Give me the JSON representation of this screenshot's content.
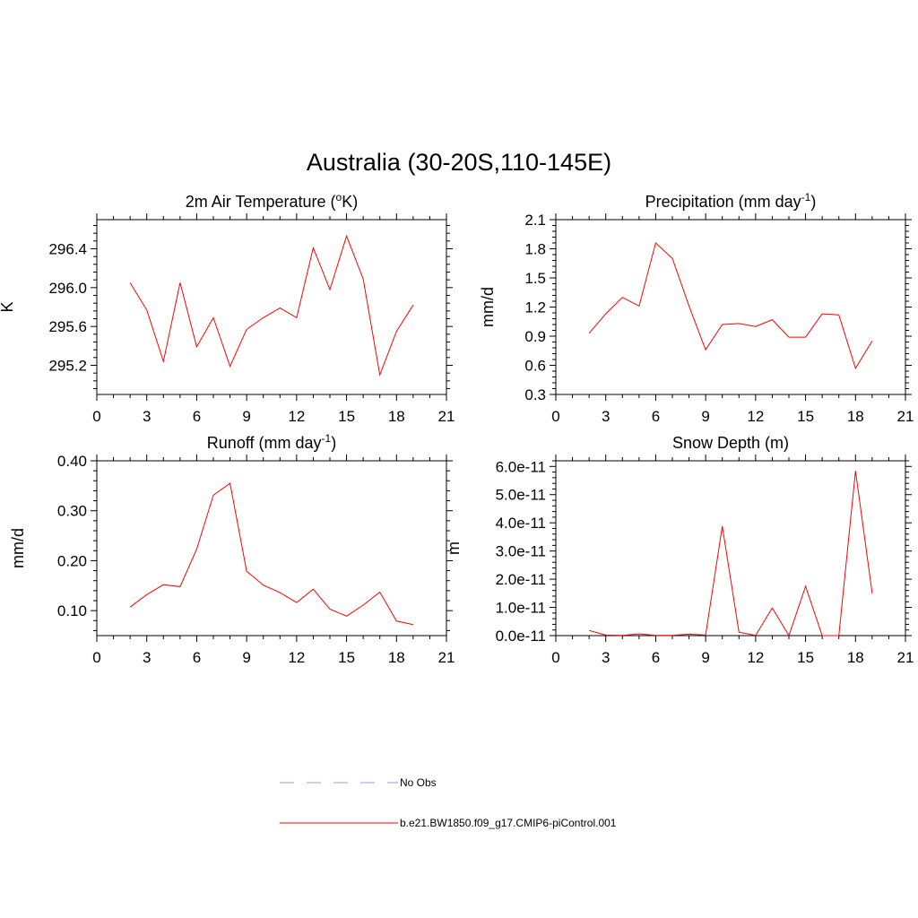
{
  "title": "Australia (30-20S,110-145E)",
  "colors": {
    "model": "#ff0000",
    "obs": "#9999ff"
  },
  "legend": [
    {
      "name": "No Obs",
      "style": "dashed",
      "color": "#9999ff"
    },
    {
      "name": "b.e21.BW1850.f09_g17.CMIP6-piControl.001",
      "style": "solid",
      "color": "#ff0000"
    }
  ],
  "chart_data": [
    {
      "type": "line",
      "title_parts": [
        "2m Air Temperature (",
        "o",
        "K)"
      ],
      "ylabel": "K",
      "xlim": [
        0,
        21
      ],
      "ylim": [
        294.9,
        296.7
      ],
      "xticks": [
        0,
        3,
        6,
        9,
        12,
        15,
        18,
        21
      ],
      "xtick_labels": [
        "0",
        "3",
        "6",
        "9",
        "12",
        "15",
        "18",
        "21"
      ],
      "yticks": [
        295.2,
        295.6,
        296.0,
        296.4
      ],
      "ytick_labels": [
        "295.2",
        "295.6",
        "296.0",
        "296.4"
      ],
      "series": [
        {
          "name": "b.e21.BW1850.f09_g17.CMIP6-piControl.001",
          "x": [
            2,
            3,
            4,
            5,
            6,
            7,
            8,
            9,
            10,
            11,
            12,
            13,
            14,
            15,
            16,
            17,
            18,
            19
          ],
          "y": [
            296.05,
            295.77,
            295.24,
            296.05,
            295.39,
            295.69,
            295.19,
            295.57,
            295.69,
            295.79,
            295.69,
            296.41,
            295.98,
            296.53,
            296.09,
            295.1,
            295.55,
            295.82
          ]
        }
      ]
    },
    {
      "type": "line",
      "title_parts": [
        "Precipitation (mm day",
        "-1",
        ")"
      ],
      "ylabel": "mm/d",
      "xlim": [
        0,
        21
      ],
      "ylim": [
        0.3,
        2.1
      ],
      "xticks": [
        0,
        3,
        6,
        9,
        12,
        15,
        18,
        21
      ],
      "xtick_labels": [
        "0",
        "3",
        "6",
        "9",
        "12",
        "15",
        "18",
        "21"
      ],
      "yticks": [
        0.3,
        0.6,
        0.9,
        1.2,
        1.5,
        1.8,
        2.1
      ],
      "ytick_labels": [
        "0.3",
        "0.6",
        "0.9",
        "1.2",
        "1.5",
        "1.8",
        "2.1"
      ],
      "series": [
        {
          "name": "b.e21.BW1850.f09_g17.CMIP6-piControl.001",
          "x": [
            2,
            3,
            4,
            5,
            6,
            7,
            8,
            9,
            10,
            11,
            12,
            13,
            14,
            15,
            16,
            17,
            18,
            19
          ],
          "y": [
            0.93,
            1.13,
            1.3,
            1.21,
            1.86,
            1.7,
            1.21,
            0.76,
            1.02,
            1.03,
            1.0,
            1.07,
            0.89,
            0.89,
            1.13,
            1.12,
            0.57,
            0.85
          ]
        }
      ]
    },
    {
      "type": "line",
      "title_parts": [
        "Runoff (mm day",
        "-1",
        ")"
      ],
      "ylabel": "mm/d",
      "xlim": [
        0,
        21
      ],
      "ylim": [
        0.05,
        0.4
      ],
      "xticks": [
        0,
        3,
        6,
        9,
        12,
        15,
        18,
        21
      ],
      "xtick_labels": [
        "0",
        "3",
        "6",
        "9",
        "12",
        "15",
        "18",
        "21"
      ],
      "yticks": [
        0.1,
        0.2,
        0.3,
        0.4
      ],
      "ytick_labels": [
        "0.10",
        "0.20",
        "0.30",
        "0.40"
      ],
      "series": [
        {
          "name": "b.e21.BW1850.f09_g17.CMIP6-piControl.001",
          "x": [
            2,
            3,
            4,
            5,
            6,
            7,
            8,
            9,
            10,
            11,
            12,
            13,
            14,
            15,
            16,
            17,
            18,
            19
          ],
          "y": [
            0.107,
            0.132,
            0.152,
            0.148,
            0.223,
            0.331,
            0.355,
            0.179,
            0.151,
            0.136,
            0.116,
            0.143,
            0.103,
            0.089,
            0.111,
            0.137,
            0.079,
            0.072
          ]
        }
      ]
    },
    {
      "type": "line",
      "title_parts": [
        "Snow Depth (m)"
      ],
      "ylabel": "m",
      "xlim": [
        0,
        21
      ],
      "ylim": [
        0,
        6.2e-11
      ],
      "xticks": [
        0,
        3,
        6,
        9,
        12,
        15,
        18,
        21
      ],
      "xtick_labels": [
        "0",
        "3",
        "6",
        "9",
        "12",
        "15",
        "18",
        "21"
      ],
      "yticks": [
        0,
        1e-11,
        2e-11,
        3e-11,
        4e-11,
        5e-11,
        6e-11
      ],
      "ytick_labels": [
        "0.0e-11",
        "1.0e-11",
        "2.0e-11",
        "3.0e-11",
        "4.0e-11",
        "5.0e-11",
        "6.0e-11"
      ],
      "series": [
        {
          "name": "b.e21.BW1850.f09_g17.CMIP6-piControl.001",
          "x": [
            2,
            3,
            4,
            5,
            6,
            7,
            8,
            9,
            10,
            11,
            12,
            13,
            14,
            15,
            16,
            17,
            18,
            19
          ],
          "y": [
            1.8e-12,
            2e-13,
            1e-13,
            6e-13,
            1e-13,
            1e-13,
            5e-13,
            2e-13,
            3.88e-11,
            1.2e-12,
            1e-13,
            9.8e-12,
            0,
            1.75e-11,
            0,
            0,
            5.84e-11,
            1.5e-11
          ]
        }
      ]
    }
  ]
}
